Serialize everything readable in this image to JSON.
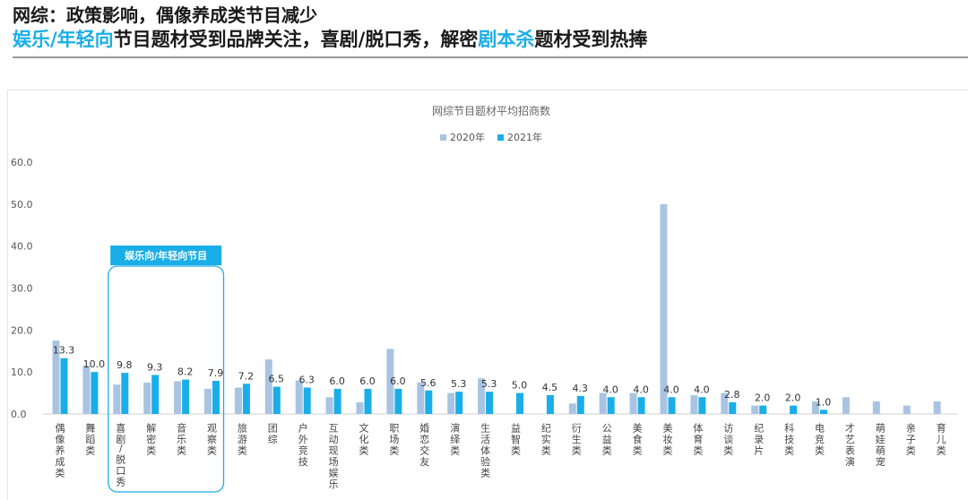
{
  "headline": {
    "line1": "网综：政策影响，偶像养成类节目减少",
    "line2_part1": "娱乐/年轻向",
    "line2_part2": "节目题材受到品牌关注，喜剧/脱口秀，解密",
    "line2_part3": "剧本杀",
    "line2_part4": "题材受到热捧"
  },
  "colors": {
    "accent": "#1aaee8",
    "series2020": "#a9c4e2",
    "series2021": "#1aaee8"
  },
  "chart_data": {
    "type": "bar",
    "title": "网综节目题材平均招商数",
    "legend_position": "top-center",
    "ylim": [
      0,
      60
    ],
    "yticks": [
      "0.0",
      "10.0",
      "20.0",
      "30.0",
      "40.0",
      "50.0",
      "60.0"
    ],
    "grid": false,
    "categories": [
      "偶像养成类",
      "舞蹈类",
      "喜剧/脱口秀",
      "解密类",
      "音乐类",
      "观察类",
      "旅游类",
      "团综",
      "户外竞技",
      "互动现场娱乐",
      "文化类",
      "职场类",
      "婚恋交友",
      "演绎类",
      "生活体验类",
      "益智类",
      "纪实类",
      "衍生类",
      "公益类",
      "美食类",
      "美妆类",
      "体育类",
      "访谈类",
      "纪录片",
      "科技类",
      "电竞类",
      "才艺表演",
      "萌娃萌宠",
      "亲子类",
      "育儿类"
    ],
    "series": [
      {
        "name": "2020年",
        "values": [
          17.5,
          11.5,
          7,
          7.5,
          7.8,
          6,
          6.3,
          13,
          8,
          4,
          2.8,
          15.5,
          7.5,
          5,
          8.5,
          0,
          0,
          2.5,
          5,
          5,
          50,
          4.5,
          5,
          2,
          0,
          3,
          4,
          3,
          2,
          3
        ]
      },
      {
        "name": "2021年",
        "values": [
          13.3,
          10.0,
          9.8,
          9.3,
          8.2,
          7.9,
          7.2,
          6.5,
          6.3,
          6.0,
          6.0,
          6.0,
          5.6,
          5.3,
          5.3,
          5.0,
          4.5,
          4.3,
          4.0,
          4.0,
          4.0,
          4.0,
          2.8,
          2.0,
          2.0,
          1.0,
          0,
          0,
          0,
          0
        ],
        "labels": [
          "13.3",
          "10.0",
          "9.8",
          "9.3",
          "8.2",
          "7.9",
          "7.2",
          "6.5",
          "6.3",
          "6.0",
          "6.0",
          "6.0",
          "5.6",
          "5.3",
          "5.3",
          "5.0",
          "4.5",
          "4.3",
          "4.0",
          "4.0",
          "4.0",
          "4.0",
          "2.8",
          "2.0",
          "2.0",
          "1.0",
          "",
          "",
          "",
          ""
        ]
      }
    ],
    "annotation": {
      "label": "娱乐向/年轻向节目",
      "category_start": 2,
      "category_end": 5
    }
  }
}
